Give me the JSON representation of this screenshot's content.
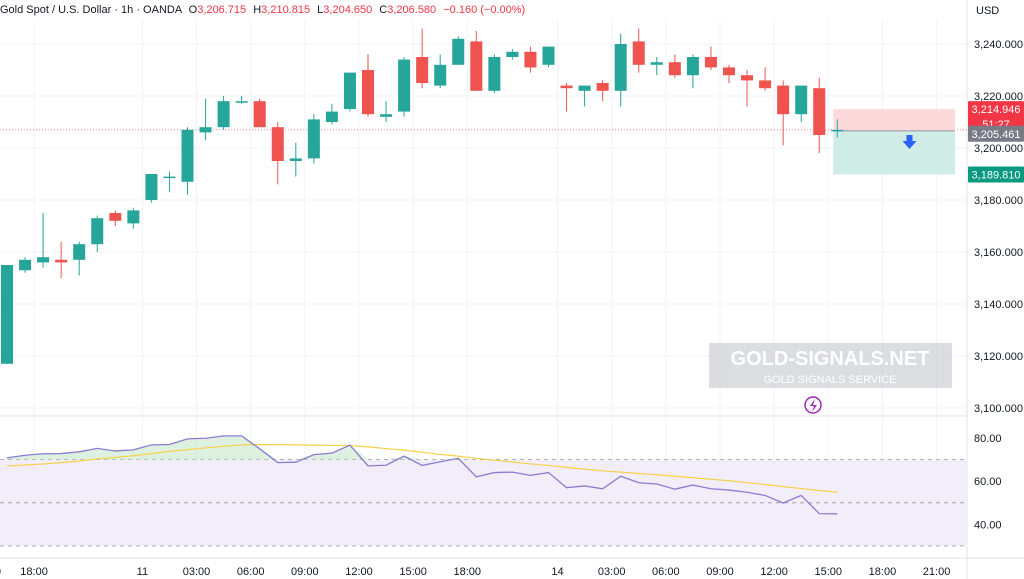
{
  "header": {
    "symbol": "Gold Spot / U.S. Dollar · 1h · OANDA",
    "o_label": "O",
    "o_value": "3,206.715",
    "h_label": "H",
    "h_value": "3,210.815",
    "l_label": "L",
    "l_value": "3,204.650",
    "c_label": "C",
    "c_value": "3,206.580",
    "change": "−0.160 (−0.00%)"
  },
  "currency": "USD",
  "watermark": {
    "title": "GOLD-SIGNALS.NET",
    "subtitle": "GOLD SIGNALS SERVICE"
  },
  "colors": {
    "up": "#26a69a",
    "down": "#ef5350",
    "rsi": "#8c7cd0",
    "rsi_ma": "#f5d14a",
    "target_zone": "#cfece6",
    "stop_zone": "#fcdadc",
    "arrow": "#2962ff"
  },
  "chart_data": {
    "type": "candlestick",
    "price_ticks": [
      "3,240.000",
      "3,220.000",
      "3,200.000",
      "3,180.000",
      "3,160.000",
      "3,140.000",
      "3,120.000",
      "3,100.000"
    ],
    "price_tick_values": [
      3240,
      3220,
      3200,
      3180,
      3160,
      3140,
      3120,
      3100
    ],
    "rsi_ticks": [
      "80.00",
      "60.00",
      "40.00"
    ],
    "rsi_tick_values": [
      80,
      60,
      40
    ],
    "time_labels": [
      "0",
      "18:00",
      "11",
      "03:00",
      "06:00",
      "09:00",
      "12:00",
      "15:00",
      "18:00",
      "14",
      "03:00",
      "06:00",
      "09:00",
      "12:00",
      "15:00",
      "18:00",
      "21:00"
    ],
    "time_label_index": [
      -0.5,
      1.5,
      7.5,
      10.5,
      13.5,
      16.5,
      19.5,
      22.5,
      25.5,
      30.5,
      33.5,
      36.5,
      39.5,
      42.5,
      45.5,
      48.5,
      51.5
    ],
    "price_labels": [
      {
        "text": "3,214.946",
        "price": 3214.946,
        "color": "#f23645"
      },
      {
        "text": "51:27",
        "price": 3209.3,
        "color": "#f23645"
      },
      {
        "text": "3,205.461",
        "price": 3205.461,
        "color": "#787b86"
      },
      {
        "text": "3,189.810",
        "price": 3189.81,
        "color": "#089981"
      }
    ],
    "trade": {
      "entry": 3206.58,
      "stop": 3214.946,
      "target": 3189.81,
      "start_index": 46,
      "end_index": 54
    },
    "candles": [
      {
        "o": 3117,
        "h": 3155,
        "l": 3117,
        "c": 3155
      },
      {
        "o": 3153,
        "h": 3158,
        "l": 3152,
        "c": 3157
      },
      {
        "o": 3156,
        "h": 3175,
        "l": 3154,
        "c": 3158
      },
      {
        "o": 3157,
        "h": 3164,
        "l": 3150,
        "c": 3156
      },
      {
        "o": 3157,
        "h": 3164,
        "l": 3151,
        "c": 3163
      },
      {
        "o": 3163,
        "h": 3174,
        "l": 3160,
        "c": 3173
      },
      {
        "o": 3175,
        "h": 3176,
        "l": 3170,
        "c": 3172
      },
      {
        "o": 3171,
        "h": 3177,
        "l": 3169,
        "c": 3176
      },
      {
        "o": 3180,
        "h": 3190,
        "l": 3179,
        "c": 3190
      },
      {
        "o": 3189,
        "h": 3191,
        "l": 3183,
        "c": 3189
      },
      {
        "o": 3187,
        "h": 3208,
        "l": 3182,
        "c": 3207
      },
      {
        "o": 3206,
        "h": 3219,
        "l": 3203,
        "c": 3208
      },
      {
        "o": 3208,
        "h": 3220,
        "l": 3207,
        "c": 3218
      },
      {
        "o": 3218,
        "h": 3220,
        "l": 3217,
        "c": 3218
      },
      {
        "o": 3218,
        "h": 3219,
        "l": 3208,
        "c": 3208
      },
      {
        "o": 3208,
        "h": 3210,
        "l": 3186,
        "c": 3195
      },
      {
        "o": 3195,
        "h": 3202,
        "l": 3189,
        "c": 3196
      },
      {
        "o": 3196,
        "h": 3213,
        "l": 3194,
        "c": 3211
      },
      {
        "o": 3210,
        "h": 3217,
        "l": 3209,
        "c": 3214
      },
      {
        "o": 3215,
        "h": 3229,
        "l": 3214,
        "c": 3229
      },
      {
        "o": 3230,
        "h": 3236,
        "l": 3212,
        "c": 3213
      },
      {
        "o": 3212,
        "h": 3218,
        "l": 3210,
        "c": 3213
      },
      {
        "o": 3214,
        "h": 3235,
        "l": 3212,
        "c": 3234
      },
      {
        "o": 3235,
        "h": 3246,
        "l": 3223,
        "c": 3225
      },
      {
        "o": 3224,
        "h": 3236,
        "l": 3223,
        "c": 3232
      },
      {
        "o": 3232,
        "h": 3243,
        "l": 3232,
        "c": 3242
      },
      {
        "o": 3241,
        "h": 3245,
        "l": 3222,
        "c": 3222
      },
      {
        "o": 3222,
        "h": 3236,
        "l": 3221,
        "c": 3235
      },
      {
        "o": 3235,
        "h": 3238,
        "l": 3234,
        "c": 3237
      },
      {
        "o": 3237,
        "h": 3239,
        "l": 3229,
        "c": 3231
      },
      {
        "o": 3232,
        "h": 3239,
        "l": 3231,
        "c": 3239
      },
      {
        "o": 3224,
        "h": 3225,
        "l": 3214,
        "c": 3223
      },
      {
        "o": 3222,
        "h": 3224,
        "l": 3216,
        "c": 3224
      },
      {
        "o": 3225,
        "h": 3226,
        "l": 3218,
        "c": 3222
      },
      {
        "o": 3222,
        "h": 3244,
        "l": 3216,
        "c": 3240
      },
      {
        "o": 3241,
        "h": 3246,
        "l": 3229,
        "c": 3232
      },
      {
        "o": 3232,
        "h": 3235,
        "l": 3228,
        "c": 3233
      },
      {
        "o": 3233,
        "h": 3236,
        "l": 3227,
        "c": 3228
      },
      {
        "o": 3228,
        "h": 3236,
        "l": 3223,
        "c": 3235
      },
      {
        "o": 3235,
        "h": 3239,
        "l": 3230,
        "c": 3231
      },
      {
        "o": 3231,
        "h": 3232,
        "l": 3225,
        "c": 3228
      },
      {
        "o": 3228,
        "h": 3230,
        "l": 3216,
        "c": 3226
      },
      {
        "o": 3226,
        "h": 3231,
        "l": 3222,
        "c": 3223
      },
      {
        "o": 3224,
        "h": 3226,
        "l": 3201,
        "c": 3213
      },
      {
        "o": 3213,
        "h": 3224,
        "l": 3210,
        "c": 3224
      },
      {
        "o": 3223,
        "h": 3227,
        "l": 3198,
        "c": 3205
      },
      {
        "o": 3207,
        "h": 3211,
        "l": 3204,
        "c": 3207
      }
    ],
    "rsi": [
      70.8,
      72.0,
      72.7,
      72.8,
      73.6,
      75.2,
      74.0,
      74.5,
      76.8,
      77.0,
      79.6,
      79.9,
      81.0,
      81.0,
      75.0,
      68.6,
      68.8,
      72.3,
      73.0,
      76.7,
      67.1,
      67.4,
      71.6,
      67.3,
      69.0,
      70.6,
      62.0,
      64.0,
      64.2,
      62.7,
      64.0,
      57.0,
      57.8,
      56.5,
      62.3,
      59.3,
      58.7,
      56.3,
      58.2,
      56.5,
      55.9,
      54.9,
      53.4,
      49.9,
      53.4,
      45.0,
      44.9
    ],
    "rsi_ma": [
      67.0,
      67.5,
      68.0,
      68.6,
      69.3,
      70.3,
      71.0,
      71.8,
      72.8,
      73.8,
      74.6,
      75.4,
      76.2,
      76.8,
      77.0,
      76.9,
      76.8,
      76.7,
      76.6,
      76.5,
      75.9,
      75.1,
      74.4,
      73.4,
      72.4,
      71.6,
      70.6,
      69.7,
      68.9,
      68.0,
      67.3,
      66.4,
      65.6,
      64.8,
      64.2,
      63.6,
      63.0,
      62.3,
      61.6,
      60.9,
      60.2,
      59.3,
      58.4,
      57.5,
      56.6,
      55.7,
      54.9
    ]
  }
}
